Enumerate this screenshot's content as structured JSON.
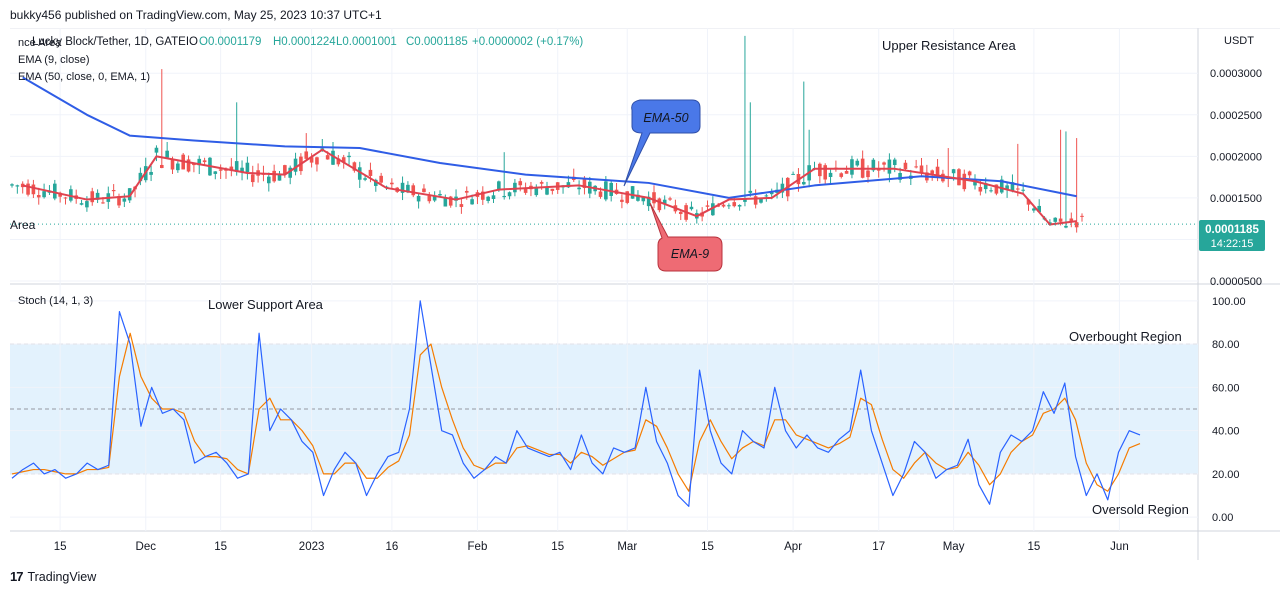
{
  "header": {
    "published_line": "bukky456 published on TradingView.com, May 25, 2023 10:37 UTC+1"
  },
  "footer": {
    "brand": "TradingView"
  },
  "colors": {
    "ema9": "#e0424f",
    "ema50": "#2f5de6",
    "candle_up": "#26a69a",
    "candle_down": "#ef5350",
    "stoch_k": "#2962ff",
    "stoch_d": "#f57c00",
    "stoch_band": "#e3f2fd",
    "price_label_bg": "#26a69a",
    "ema50_callout": "#4a78e8",
    "ema9_callout": "#ee6b74"
  },
  "main_pane": {
    "symbol_line": "Lucky Block/Tether, 1D, GATEIO",
    "ohlc": {
      "open": "O0.0001179",
      "high": "H0.0001224",
      "low": "L0.0001001",
      "close": "C0.0001185",
      "change": "+0.0000002 (+0.17%)"
    },
    "ema9_legend": "EMA (9, close)",
    "ema50_legend": "EMA (50, close, 0, EMA, 1)",
    "left_cut_top": "nce Area",
    "left_cut_mid": "Area",
    "upper_resistance": "Upper Resistance Area",
    "ema50_callout": "EMA-50",
    "ema9_callout": "EMA-9",
    "currency": "USDT",
    "price_label": "0.0001185",
    "countdown": "14:22:15"
  },
  "stoch_pane": {
    "legend": "Stoch (14, 1, 3)",
    "lower_support": "Lower Support Area",
    "overbought": "Overbought Region",
    "oversold": "Oversold Region"
  },
  "chart_data": [
    {
      "type": "candlestick",
      "title": "Lucky Block/Tether, 1D, GATEIO",
      "ylabel": "USDT",
      "ylim": [
        5e-05,
        0.00034
      ],
      "y_ticks": [
        "0.0000500",
        "0.0001000",
        "0.0001500",
        "0.0002000",
        "0.0002500",
        "0.0003000"
      ],
      "x_ticks": [
        "15",
        "Dec",
        "15",
        "2023",
        "16",
        "Feb",
        "15",
        "Mar",
        "15",
        "Apr",
        "17",
        "May",
        "15",
        "Jun"
      ],
      "last": {
        "open": 0.0001179,
        "high": 0.0001224,
        "low": 0.0001001,
        "close": 0.0001185
      },
      "series": [
        {
          "name": "EMA (9, close)",
          "x": [
            "Nov 8",
            "Nov 20",
            "Nov 28",
            "Dec 3",
            "Dec 20",
            "Dec 27",
            "Jan 3",
            "Jan 15",
            "Jan 28",
            "Feb 5",
            "Feb 20",
            "Mar 5",
            "Mar 14",
            "Mar 20",
            "Mar 28",
            "Apr 5",
            "Apr 20",
            "May 5",
            "May 14",
            "May 19",
            "May 24"
          ],
          "values": [
            0.000165,
            0.000148,
            0.000152,
            0.0002,
            0.00018,
            0.000178,
            0.000208,
            0.000162,
            0.000148,
            0.00016,
            0.000165,
            0.00015,
            0.000128,
            0.000148,
            0.00015,
            0.000185,
            0.000185,
            0.00017,
            0.000155,
            0.000118,
            0.000122
          ]
        },
        {
          "name": "EMA (50, close, 0, EMA, 1)",
          "x": [
            "Nov 8",
            "Nov 20",
            "Nov 28",
            "Dec 10",
            "Dec 27",
            "Jan 10",
            "Jan 25",
            "Feb 10",
            "Mar 5",
            "Mar 20",
            "Apr 5",
            "Apr 25",
            "May 10",
            "May 24"
          ],
          "values": [
            0.000295,
            0.00025,
            0.000225,
            0.000219,
            0.000212,
            0.00021,
            0.000192,
            0.000178,
            0.000168,
            0.00015,
            0.000165,
            0.000176,
            0.00017,
            0.000152
          ]
        }
      ]
    },
    {
      "type": "line",
      "title": "Stoch (14, 1, 3)",
      "ylim": [
        -5,
        105
      ],
      "y_ticks": [
        "0.00",
        "20.00",
        "40.00",
        "60.00",
        "80.00",
        "100.00"
      ],
      "bands": {
        "upper": 80,
        "middle": 50,
        "lower": 20
      },
      "x_ticks": [
        "15",
        "Dec",
        "15",
        "2023",
        "16",
        "Feb",
        "15",
        "Mar",
        "15",
        "Apr",
        "17",
        "May",
        "15",
        "Jun"
      ],
      "series": [
        {
          "name": "%K",
          "values": [
            18,
            22,
            25,
            20,
            22,
            18,
            20,
            25,
            22,
            24,
            95,
            80,
            42,
            60,
            48,
            50,
            45,
            25,
            28,
            30,
            25,
            18,
            20,
            85,
            40,
            50,
            45,
            35,
            30,
            10,
            22,
            30,
            25,
            10,
            20,
            28,
            30,
            50,
            100,
            70,
            40,
            38,
            25,
            18,
            22,
            28,
            25,
            40,
            32,
            30,
            28,
            30,
            22,
            38,
            25,
            20,
            32,
            30,
            32,
            60,
            35,
            25,
            10,
            5,
            68,
            40,
            25,
            20,
            40,
            35,
            32,
            60,
            40,
            32,
            38,
            32,
            30,
            36,
            40,
            68,
            40,
            25,
            10,
            20,
            35,
            30,
            18,
            22,
            24,
            36,
            15,
            6,
            30,
            38,
            35,
            40,
            58,
            48,
            62,
            28,
            10,
            20,
            8,
            30,
            40,
            38
          ]
        },
        {
          "name": "%D",
          "values": [
            20,
            21,
            22,
            22,
            21,
            20,
            20,
            22,
            22,
            23,
            65,
            85,
            65,
            55,
            50,
            50,
            48,
            35,
            28,
            28,
            27,
            22,
            20,
            50,
            55,
            45,
            45,
            40,
            33,
            20,
            20,
            25,
            25,
            18,
            18,
            23,
            26,
            38,
            75,
            80,
            60,
            45,
            32,
            24,
            22,
            25,
            25,
            32,
            33,
            31,
            29,
            29,
            25,
            30,
            28,
            24,
            27,
            30,
            31,
            45,
            42,
            32,
            20,
            12,
            35,
            45,
            35,
            27,
            32,
            35,
            33,
            45,
            45,
            38,
            36,
            34,
            32,
            34,
            37,
            55,
            52,
            36,
            22,
            18,
            25,
            30,
            25,
            22,
            23,
            30,
            24,
            15,
            20,
            30,
            35,
            38,
            48,
            50,
            55,
            45,
            25,
            15,
            12,
            20,
            32,
            34
          ]
        }
      ]
    }
  ]
}
